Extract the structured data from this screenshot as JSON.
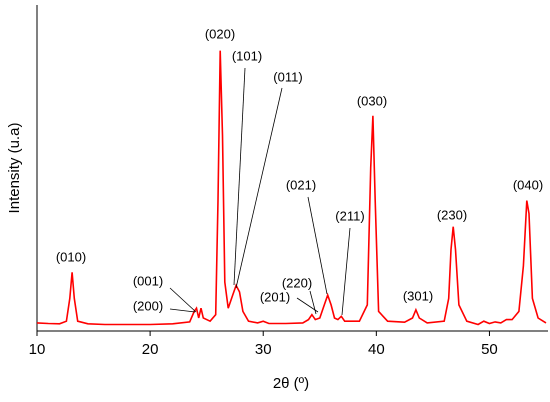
{
  "chart_data": {
    "type": "line",
    "x_label": "2θ (º)",
    "y_label": "Intensity (u.a)",
    "xlim": [
      10,
      55
    ],
    "xticks": [
      10,
      20,
      30,
      40,
      50
    ],
    "ylim": [
      0,
      100
    ],
    "series": [
      {
        "color": "#ff0000",
        "x": [
          10,
          11,
          12,
          12.6,
          12.9,
          13.1,
          13.3,
          13.6,
          14.5,
          16,
          18,
          20,
          22,
          23.5,
          23.9,
          24.1,
          24.3,
          24.5,
          24.7,
          25.3,
          25.8,
          26.0,
          26.2,
          26.4,
          26.6,
          26.9,
          27.3,
          27.6,
          27.9,
          28.2,
          28.7,
          29.5,
          30,
          30.5,
          32,
          33.5,
          34.0,
          34.3,
          34.6,
          35.0,
          35.4,
          35.7,
          36.0,
          36.3,
          36.6,
          36.9,
          37.2,
          38.5,
          39.2,
          39.5,
          39.7,
          39.9,
          40.2,
          41,
          42.5,
          43.2,
          43.5,
          43.8,
          44.5,
          46,
          46.4,
          46.6,
          46.8,
          47.0,
          47.3,
          48,
          49,
          49.5,
          50,
          50.5,
          51,
          51.5,
          52,
          52.6,
          53.0,
          53.3,
          53.5,
          53.8,
          54.3,
          55
        ],
        "values": [
          2.5,
          2.3,
          2.2,
          3,
          10,
          18,
          10,
          3,
          2.2,
          2,
          2,
          2,
          2.2,
          2.8,
          6,
          7,
          4,
          7,
          4,
          3,
          5,
          40,
          86,
          60,
          15,
          7,
          11,
          14,
          12,
          6,
          3,
          2.5,
          3,
          2.3,
          2.3,
          2.5,
          3.5,
          5,
          3.5,
          4,
          8,
          11,
          8,
          4,
          3.5,
          4.5,
          3,
          3,
          8,
          50,
          66,
          40,
          6,
          3,
          2.7,
          4,
          6.5,
          4,
          2.5,
          3,
          10,
          25,
          32,
          25,
          8,
          3,
          2,
          3,
          2.3,
          2.8,
          2.5,
          3.5,
          3.5,
          6,
          20,
          40,
          36,
          10,
          4,
          2.5
        ]
      }
    ],
    "annotations": [
      "(010)",
      "(001)",
      "(200)",
      "(020)",
      "(101)",
      "(011)",
      "(220)",
      "(201)",
      "(021)",
      "(211)",
      "(030)",
      "(301)",
      "(230)",
      "(040)"
    ]
  }
}
